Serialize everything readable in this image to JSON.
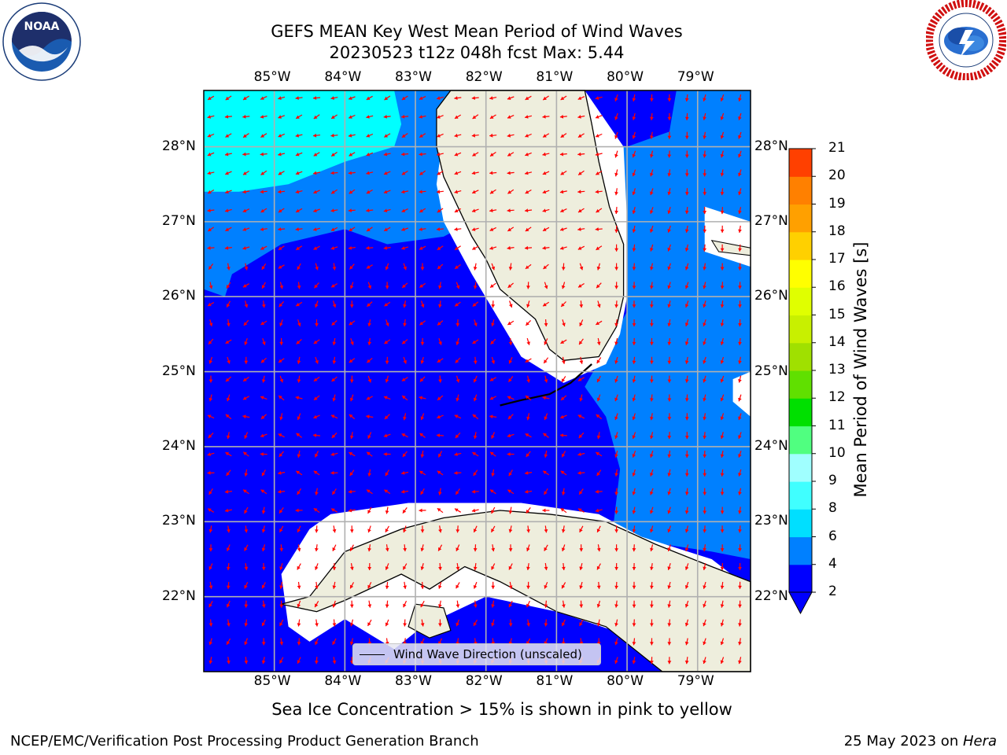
{
  "title_line1": "GEFS MEAN Key West Mean Period of Wind Waves",
  "title_line2": "20230523 t12z 048h fcst   Max: 5.44",
  "logo_left": "noaa-logo",
  "logo_right": "national-weather-service-logo",
  "map": {
    "lon_range": [
      -86.0,
      -78.25
    ],
    "lat_range": [
      21.0,
      28.75
    ],
    "lon_ticks": [
      "85°W",
      "84°W",
      "83°W",
      "82°W",
      "81°W",
      "80°W",
      "79°W"
    ],
    "lat_ticks": [
      "28°N",
      "27°N",
      "26°N",
      "25°N",
      "24°N",
      "23°N",
      "22°N"
    ],
    "colors": {
      "land": "#eeeedd",
      "band_2_4": "#0000ff",
      "band_4_6": "#0080ff",
      "band_6_8": "#00ffff",
      "arrow": "#ff0000",
      "grid": "#b0b0b0"
    }
  },
  "legend_text": "Wind Wave Direction (unscaled)",
  "colorbar": {
    "label": "Mean Period of Wind Waves [s]",
    "ticks": [
      "2",
      "4",
      "6",
      "8",
      "9",
      "10",
      "11",
      "12",
      "13",
      "14",
      "15",
      "16",
      "17",
      "18",
      "19",
      "20",
      "21"
    ],
    "colors": [
      "#0000ff",
      "#0080ff",
      "#00dfff",
      "#40ffff",
      "#a0ffff",
      "#50ff80",
      "#00e000",
      "#60e000",
      "#a0e000",
      "#c8f000",
      "#e0ff00",
      "#ffff00",
      "#ffd000",
      "#ffa000",
      "#ff8000",
      "#ff4000",
      "#ff1000"
    ]
  },
  "caption": "Sea Ice Concentration > 15% is shown in pink to yellow",
  "footer_left": "NCEP/EMC/Verification Post Processing Product Generation Branch",
  "footer_right_prefix": "25 May 2023 on ",
  "footer_right_host": "Hera"
}
